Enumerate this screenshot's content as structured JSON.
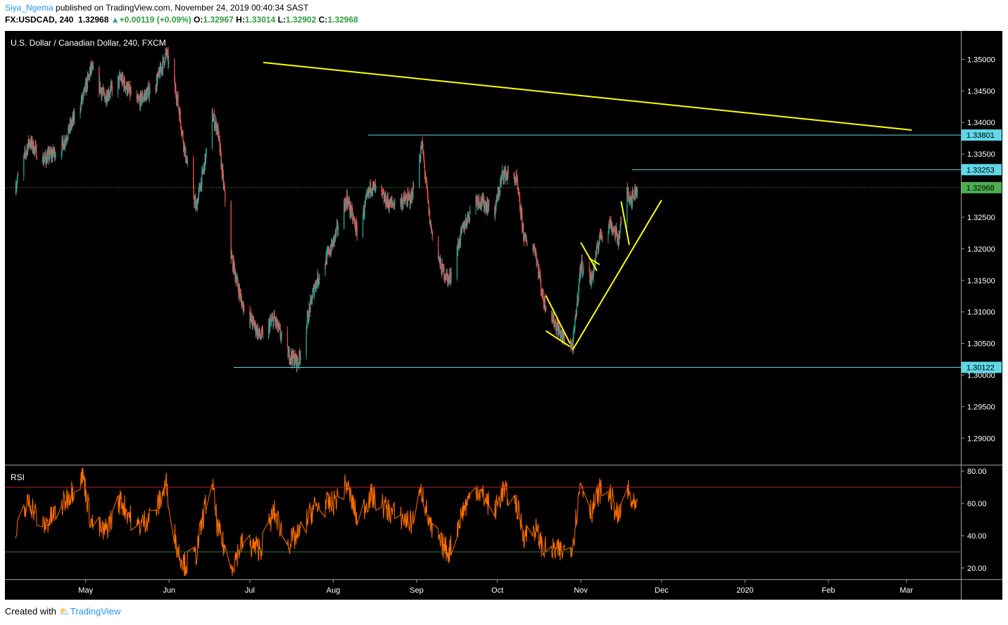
{
  "header": {
    "user": "Siya_Ngema",
    "published_text": "published on TradingView.com, November 24, 2019 00:40:34 SAST",
    "symbol": "FX:USDCAD, 240",
    "last": "1.32968",
    "change": "+0.00119 (+0.09%)",
    "o_label": "O:",
    "o_value": "1.32967",
    "h_label": "H:",
    "h_value": "1.33014",
    "l_label": "L:",
    "l_value": "1.32902",
    "c_label": "C:",
    "c_value": "1.32968"
  },
  "footer": {
    "created_with": "Created with",
    "brand": "TradingView"
  },
  "colors": {
    "background": "#000000",
    "candle_up": "#26a69a",
    "candle_down": "#ef5350",
    "trendline": "#ffff00",
    "level_line": "#5fd7e7",
    "last_price": "#4caf50",
    "rsi_line": "#ff6d00",
    "rsi_upper": "#b71c1c",
    "rsi_lower": "#2e7d32"
  },
  "chart_data": [
    {
      "type": "candlestick",
      "title": "U.S. Dollar / Canadian Dollar, 240, FXCM",
      "x_tick_labels": [
        "May",
        "Jun",
        "Jul",
        "Aug",
        "Sep",
        "Oct",
        "Nov",
        "Dec",
        "2020",
        "Feb",
        "Mar"
      ],
      "y_tick_labels": [
        "1.35000",
        "1.34500",
        "1.34000",
        "1.33500",
        "1.32500",
        "1.32000",
        "1.31500",
        "1.31000",
        "1.30500",
        "1.30000",
        "1.29500",
        "1.29000"
      ],
      "ylim": [
        1.2858,
        1.3545
      ],
      "price_path": [
        {
          "x": "2019-04-05",
          "y": 1.33
        },
        {
          "x": "2019-04-10",
          "y": 1.337
        },
        {
          "x": "2019-04-15",
          "y": 1.334
        },
        {
          "x": "2019-04-22",
          "y": 1.336
        },
        {
          "x": "2019-04-30",
          "y": 1.344
        },
        {
          "x": "2019-05-03",
          "y": 1.3485
        },
        {
          "x": "2019-05-08",
          "y": 1.344
        },
        {
          "x": "2019-05-14",
          "y": 1.347
        },
        {
          "x": "2019-05-20",
          "y": 1.343
        },
        {
          "x": "2019-05-27",
          "y": 1.346
        },
        {
          "x": "2019-05-31",
          "y": 1.351
        },
        {
          "x": "2019-06-04",
          "y": 1.344
        },
        {
          "x": "2019-06-07",
          "y": 1.335
        },
        {
          "x": "2019-06-11",
          "y": 1.3265
        },
        {
          "x": "2019-06-14",
          "y": 1.333
        },
        {
          "x": "2019-06-17",
          "y": 1.341
        },
        {
          "x": "2019-06-19",
          "y": 1.339
        },
        {
          "x": "2019-06-24",
          "y": 1.319
        },
        {
          "x": "2019-06-28",
          "y": 1.3115
        },
        {
          "x": "2019-07-05",
          "y": 1.306
        },
        {
          "x": "2019-07-10",
          "y": 1.309
        },
        {
          "x": "2019-07-15",
          "y": 1.3035
        },
        {
          "x": "2019-07-19",
          "y": 1.302
        },
        {
          "x": "2019-07-25",
          "y": 1.314
        },
        {
          "x": "2019-08-01",
          "y": 1.321
        },
        {
          "x": "2019-08-06",
          "y": 1.328
        },
        {
          "x": "2019-08-10",
          "y": 1.3225
        },
        {
          "x": "2019-08-15",
          "y": 1.33
        },
        {
          "x": "2019-08-22",
          "y": 1.327
        },
        {
          "x": "2019-08-30",
          "y": 1.328
        },
        {
          "x": "2019-09-03",
          "y": 1.3365
        },
        {
          "x": "2019-09-06",
          "y": 1.324
        },
        {
          "x": "2019-09-10",
          "y": 1.317
        },
        {
          "x": "2019-09-13",
          "y": 1.315
        },
        {
          "x": "2019-09-18",
          "y": 1.323
        },
        {
          "x": "2019-09-23",
          "y": 1.328
        },
        {
          "x": "2019-09-30",
          "y": 1.326
        },
        {
          "x": "2019-10-03",
          "y": 1.332
        },
        {
          "x": "2019-10-08",
          "y": 1.331
        },
        {
          "x": "2019-10-11",
          "y": 1.3215
        },
        {
          "x": "2019-10-15",
          "y": 1.32
        },
        {
          "x": "2019-10-18",
          "y": 1.312
        },
        {
          "x": "2019-10-25",
          "y": 1.306
        },
        {
          "x": "2019-10-29",
          "y": 1.3045
        },
        {
          "x": "2019-11-01",
          "y": 1.3175
        },
        {
          "x": "2019-11-05",
          "y": 1.315
        },
        {
          "x": "2019-11-08",
          "y": 1.322
        },
        {
          "x": "2019-11-12",
          "y": 1.324
        },
        {
          "x": "2019-11-15",
          "y": 1.3215
        },
        {
          "x": "2019-11-18",
          "y": 1.329
        },
        {
          "x": "2019-11-20",
          "y": 1.328
        },
        {
          "x": "2019-11-22",
          "y": 1.3297
        }
      ],
      "level_labels": [
        "1.33801",
        "1.33253",
        "1.32968",
        "1.30122"
      ],
      "levels": [
        {
          "price": 1.33801,
          "from": "2019-08-14",
          "label": "1.33801"
        },
        {
          "price": 1.33253,
          "from": "2019-11-20",
          "label": "1.33253"
        },
        {
          "price": 1.30122,
          "from": "2019-06-25",
          "label": "1.30122"
        }
      ],
      "last_price": {
        "price": 1.32968,
        "label": "1.32968"
      },
      "trendlines": [
        {
          "x1": "2019-07-06",
          "y1": 1.3495,
          "x2": "2020-03-03",
          "y2": 1.3388
        },
        {
          "x1": "2019-10-29",
          "y1": 1.304,
          "x2": "2019-12-01",
          "y2": 1.3277
        },
        {
          "x1": "2019-10-19",
          "y1": 1.3126,
          "x2": "2019-10-28",
          "y2": 1.305
        },
        {
          "x1": "2019-10-19",
          "y1": 1.307,
          "x2": "2019-10-28",
          "y2": 1.3045
        },
        {
          "x1": "2019-11-01",
          "y1": 1.321,
          "x2": "2019-11-07",
          "y2": 1.3165
        },
        {
          "x1": "2019-11-04",
          "y1": 1.3185,
          "x2": "2019-11-08",
          "y2": 1.3175
        },
        {
          "x1": "2019-11-16",
          "y1": 1.3275,
          "x2": "2019-11-19",
          "y2": 1.3206
        }
      ]
    },
    {
      "type": "line",
      "title": "RSI",
      "y_tick_labels": [
        "80.00",
        "60.00",
        "40.00",
        "20.00"
      ],
      "ylim": [
        13,
        84
      ],
      "bands": [
        70,
        30
      ],
      "series": [
        {
          "values": [
            {
              "x": "2019-04-05",
              "y": 40
            },
            {
              "x": "2019-04-10",
              "y": 62
            },
            {
              "x": "2019-04-15",
              "y": 45
            },
            {
              "x": "2019-04-22",
              "y": 58
            },
            {
              "x": "2019-04-30",
              "y": 78
            },
            {
              "x": "2019-05-03",
              "y": 48
            },
            {
              "x": "2019-05-08",
              "y": 42
            },
            {
              "x": "2019-05-14",
              "y": 62
            },
            {
              "x": "2019-05-20",
              "y": 45
            },
            {
              "x": "2019-05-27",
              "y": 55
            },
            {
              "x": "2019-05-31",
              "y": 72
            },
            {
              "x": "2019-06-04",
              "y": 32
            },
            {
              "x": "2019-06-07",
              "y": 22
            },
            {
              "x": "2019-06-11",
              "y": 28
            },
            {
              "x": "2019-06-14",
              "y": 55
            },
            {
              "x": "2019-06-17",
              "y": 74
            },
            {
              "x": "2019-06-19",
              "y": 45
            },
            {
              "x": "2019-06-24",
              "y": 20
            },
            {
              "x": "2019-06-28",
              "y": 35
            },
            {
              "x": "2019-07-05",
              "y": 32
            },
            {
              "x": "2019-07-10",
              "y": 55
            },
            {
              "x": "2019-07-15",
              "y": 35
            },
            {
              "x": "2019-07-19",
              "y": 40
            },
            {
              "x": "2019-07-25",
              "y": 58
            },
            {
              "x": "2019-08-01",
              "y": 60
            },
            {
              "x": "2019-08-06",
              "y": 72
            },
            {
              "x": "2019-08-10",
              "y": 50
            },
            {
              "x": "2019-08-15",
              "y": 65
            },
            {
              "x": "2019-08-22",
              "y": 55
            },
            {
              "x": "2019-08-30",
              "y": 48
            },
            {
              "x": "2019-09-03",
              "y": 68
            },
            {
              "x": "2019-09-06",
              "y": 45
            },
            {
              "x": "2019-09-10",
              "y": 35
            },
            {
              "x": "2019-09-13",
              "y": 30
            },
            {
              "x": "2019-09-18",
              "y": 55
            },
            {
              "x": "2019-09-23",
              "y": 70
            },
            {
              "x": "2019-09-30",
              "y": 55
            },
            {
              "x": "2019-10-03",
              "y": 68
            },
            {
              "x": "2019-10-08",
              "y": 60
            },
            {
              "x": "2019-10-11",
              "y": 40
            },
            {
              "x": "2019-10-15",
              "y": 45
            },
            {
              "x": "2019-10-18",
              "y": 32
            },
            {
              "x": "2019-10-25",
              "y": 30
            },
            {
              "x": "2019-10-29",
              "y": 35
            },
            {
              "x": "2019-11-01",
              "y": 74
            },
            {
              "x": "2019-11-05",
              "y": 55
            },
            {
              "x": "2019-11-08",
              "y": 68
            },
            {
              "x": "2019-11-12",
              "y": 65
            },
            {
              "x": "2019-11-15",
              "y": 50
            },
            {
              "x": "2019-11-18",
              "y": 70
            },
            {
              "x": "2019-11-20",
              "y": 60
            },
            {
              "x": "2019-11-22",
              "y": 55
            }
          ]
        }
      ]
    }
  ]
}
